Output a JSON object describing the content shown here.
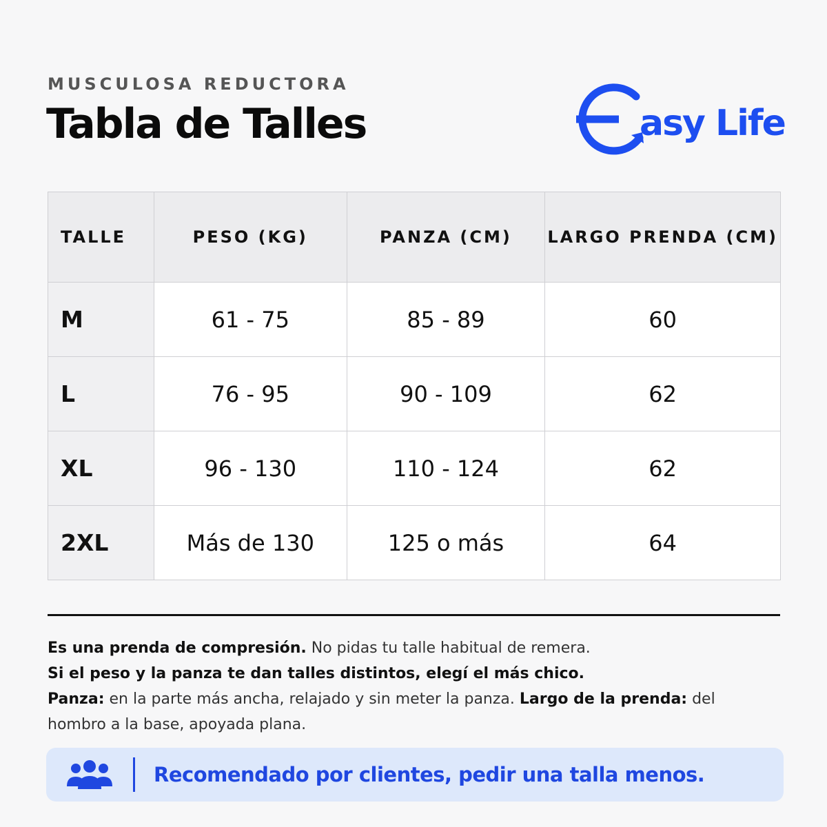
{
  "header": {
    "subtitle": "MUSCULOSA REDUCTORA",
    "title": "Tabla de Talles",
    "logo": "asy Life"
  },
  "table": {
    "columns": [
      "TALLE",
      "PESO (KG)",
      "PANZA (CM)",
      "LARGO PRENDA (CM)"
    ],
    "rows": [
      [
        "M",
        "61 - 75",
        "85 - 89",
        "60"
      ],
      [
        "L",
        "76 - 95",
        "90 - 109",
        "62"
      ],
      [
        "XL",
        "96 - 130",
        "110 - 124",
        "62"
      ],
      [
        "2XL",
        "Más de 130",
        "125 o más",
        "64"
      ]
    ]
  },
  "notes": [
    [
      {
        "text": "Es una prenda de compresión.",
        "bold": true
      },
      {
        "text": "No pidas tu talle habitual de remera.",
        "bold": false
      }
    ],
    [
      {
        "text": "Si el peso y la panza te dan talles distintos, elegí el más chico.",
        "bold": true
      }
    ],
    [
      {
        "text": "Panza:",
        "bold": true
      },
      {
        "text": "en la parte más ancha, relajado y sin meter la panza.",
        "bold": false
      },
      {
        "text": "Largo de la prenda:",
        "bold": true
      },
      {
        "text": "del hombro a la base, apoyada plana.",
        "bold": false
      }
    ]
  ],
  "banner": {
    "text": "Recomendado por clientes, pedir una talla menos."
  }
}
